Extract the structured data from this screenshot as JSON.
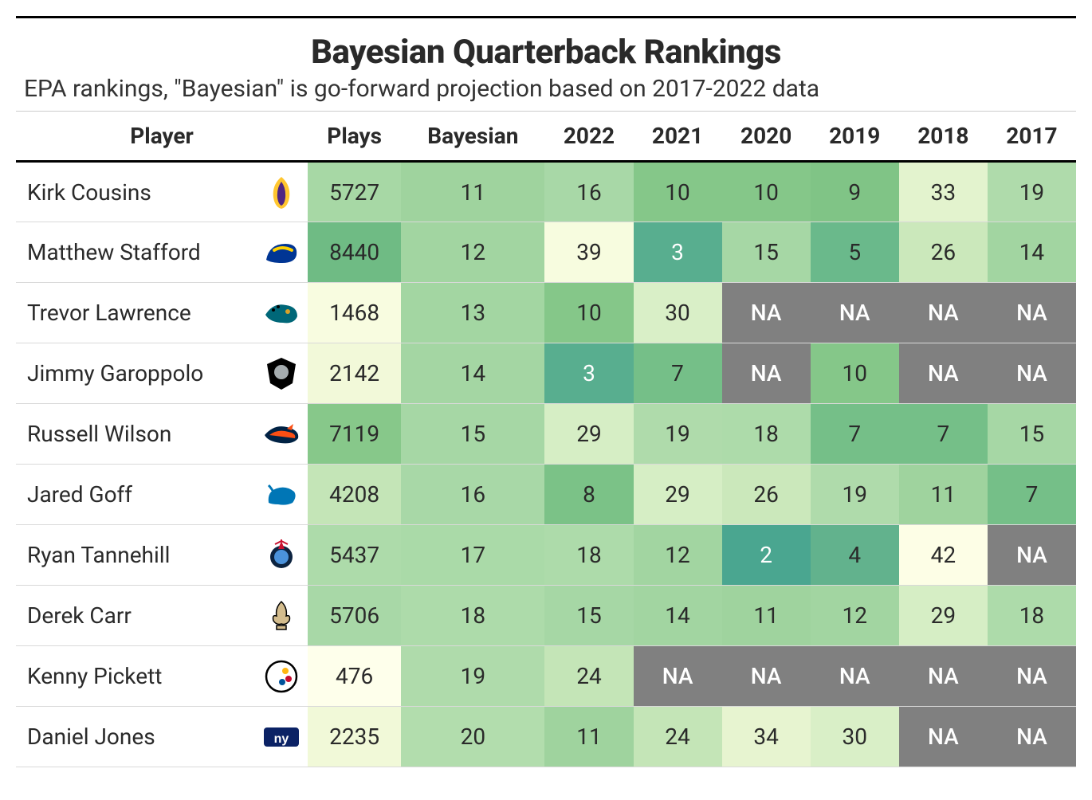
{
  "title": "Bayesian Quarterback Rankings",
  "subtitle": "EPA rankings, \"Bayesian\" is go-forward projection based on 2017-2022 data",
  "columns": [
    "Player",
    "",
    "Plays",
    "Bayesian",
    "2022",
    "2021",
    "2020",
    "2019",
    "2018",
    "2017"
  ],
  "na_label": "NA",
  "na_bg": "#808080",
  "na_fg": "#ffffff",
  "rows": [
    {
      "player": "Kirk Cousins",
      "logo": "vikings",
      "cells": [
        {
          "v": "5727",
          "bg": "#a7d8a5"
        },
        {
          "v": "11",
          "bg": "#9fd39e"
        },
        {
          "v": "16",
          "bg": "#a8d8a7"
        },
        {
          "v": "10",
          "bg": "#85c789"
        },
        {
          "v": "10",
          "bg": "#85c789"
        },
        {
          "v": "9",
          "bg": "#80c486"
        },
        {
          "v": "33",
          "bg": "#e3f3ce"
        },
        {
          "v": "19",
          "bg": "#afdbab"
        }
      ]
    },
    {
      "player": "Matthew Stafford",
      "logo": "rams",
      "cells": [
        {
          "v": "8440",
          "bg": "#6fbb84"
        },
        {
          "v": "12",
          "bg": "#a2d5a1"
        },
        {
          "v": "39",
          "bg": "#f7fcdf"
        },
        {
          "v": "3",
          "bg": "#58ae8f",
          "fg": "#ffffff"
        },
        {
          "v": "15",
          "bg": "#a6d7a5"
        },
        {
          "v": "5",
          "bg": "#6ab98b"
        },
        {
          "v": "26",
          "bg": "#cbe8bb"
        },
        {
          "v": "14",
          "bg": "#a2d5a1"
        }
      ]
    },
    {
      "player": "Trevor Lawrence",
      "logo": "jaguars",
      "cells": [
        {
          "v": "1468",
          "bg": "#f8fce0"
        },
        {
          "v": "13",
          "bg": "#a3d6a2"
        },
        {
          "v": "10",
          "bg": "#85c789"
        },
        {
          "v": "30",
          "bg": "#d9efc7"
        },
        {
          "v": "NA"
        },
        {
          "v": "NA"
        },
        {
          "v": "NA"
        },
        {
          "v": "NA"
        }
      ]
    },
    {
      "player": "Jimmy Garoppolo",
      "logo": "raiders",
      "cells": [
        {
          "v": "2142",
          "bg": "#f2f9d9"
        },
        {
          "v": "14",
          "bg": "#a4d6a3"
        },
        {
          "v": "3",
          "bg": "#58ae8f",
          "fg": "#ffffff"
        },
        {
          "v": "7",
          "bg": "#75bf88"
        },
        {
          "v": "NA"
        },
        {
          "v": "10",
          "bg": "#85c789"
        },
        {
          "v": "NA"
        },
        {
          "v": "NA"
        }
      ]
    },
    {
      "player": "Russell Wilson",
      "logo": "broncos",
      "cells": [
        {
          "v": "7119",
          "bg": "#87c88a"
        },
        {
          "v": "15",
          "bg": "#a6d7a5"
        },
        {
          "v": "29",
          "bg": "#d6eec5"
        },
        {
          "v": "19",
          "bg": "#afdbab"
        },
        {
          "v": "18",
          "bg": "#addbaa"
        },
        {
          "v": "7",
          "bg": "#75bf88"
        },
        {
          "v": "7",
          "bg": "#75bf88"
        },
        {
          "v": "15",
          "bg": "#a6d7a5"
        }
      ]
    },
    {
      "player": "Jared Goff",
      "logo": "lions",
      "cells": [
        {
          "v": "4208",
          "bg": "#c4e5b7"
        },
        {
          "v": "16",
          "bg": "#a8d8a7"
        },
        {
          "v": "8",
          "bg": "#7bc287"
        },
        {
          "v": "29",
          "bg": "#d6eec5"
        },
        {
          "v": "26",
          "bg": "#cbe8bb"
        },
        {
          "v": "19",
          "bg": "#afdbab"
        },
        {
          "v": "11",
          "bg": "#9fd39e"
        },
        {
          "v": "7",
          "bg": "#75bf88"
        }
      ]
    },
    {
      "player": "Ryan Tannehill",
      "logo": "titans",
      "cells": [
        {
          "v": "5437",
          "bg": "#addbaa"
        },
        {
          "v": "17",
          "bg": "#aadaa8"
        },
        {
          "v": "18",
          "bg": "#addbaa"
        },
        {
          "v": "12",
          "bg": "#a2d5a1"
        },
        {
          "v": "2",
          "bg": "#4aa690",
          "fg": "#ffffff"
        },
        {
          "v": "4",
          "bg": "#62b28d"
        },
        {
          "v": "42",
          "bg": "#fdfee6"
        },
        {
          "v": "NA"
        }
      ]
    },
    {
      "player": "Derek Carr",
      "logo": "saints",
      "cells": [
        {
          "v": "5706",
          "bg": "#a8d8a7"
        },
        {
          "v": "18",
          "bg": "#addbaa"
        },
        {
          "v": "15",
          "bg": "#a6d7a5"
        },
        {
          "v": "14",
          "bg": "#a2d5a1"
        },
        {
          "v": "11",
          "bg": "#9fd39e"
        },
        {
          "v": "12",
          "bg": "#a2d5a1"
        },
        {
          "v": "29",
          "bg": "#d6eec5"
        },
        {
          "v": "18",
          "bg": "#addbaa"
        }
      ]
    },
    {
      "player": "Kenny Pickett",
      "logo": "steelers",
      "cells": [
        {
          "v": "476",
          "bg": "#feffeb"
        },
        {
          "v": "19",
          "bg": "#afdbab"
        },
        {
          "v": "24",
          "bg": "#c4e5b7"
        },
        {
          "v": "NA"
        },
        {
          "v": "NA"
        },
        {
          "v": "NA"
        },
        {
          "v": "NA"
        },
        {
          "v": "NA"
        }
      ]
    },
    {
      "player": "Daniel Jones",
      "logo": "giants",
      "cells": [
        {
          "v": "2235",
          "bg": "#f1f9d8"
        },
        {
          "v": "20",
          "bg": "#b2ddad"
        },
        {
          "v": "11",
          "bg": "#9fd39e"
        },
        {
          "v": "24",
          "bg": "#c4e5b7"
        },
        {
          "v": "34",
          "bg": "#e7f4d0"
        },
        {
          "v": "30",
          "bg": "#d9efc7"
        },
        {
          "v": "NA"
        },
        {
          "v": "NA"
        }
      ]
    }
  ],
  "logos": {
    "vikings": {
      "primary": "#4f2683",
      "secondary": "#ffc62f"
    },
    "rams": {
      "primary": "#003594",
      "secondary": "#ffd100"
    },
    "jaguars": {
      "primary": "#006778",
      "secondary": "#d7a22a"
    },
    "raiders": {
      "primary": "#000000",
      "secondary": "#a5acaf"
    },
    "broncos": {
      "primary": "#fb4f14",
      "secondary": "#002244"
    },
    "lions": {
      "primary": "#0076b6",
      "secondary": "#b0b7bc"
    },
    "titans": {
      "primary": "#0c2340",
      "secondary": "#4b92db"
    },
    "saints": {
      "primary": "#d3bc8d",
      "secondary": "#000000"
    },
    "steelers": {
      "primary": "#000000",
      "secondary": "#ffb612"
    },
    "giants": {
      "primary": "#0b2265",
      "secondary": "#a71930"
    }
  }
}
